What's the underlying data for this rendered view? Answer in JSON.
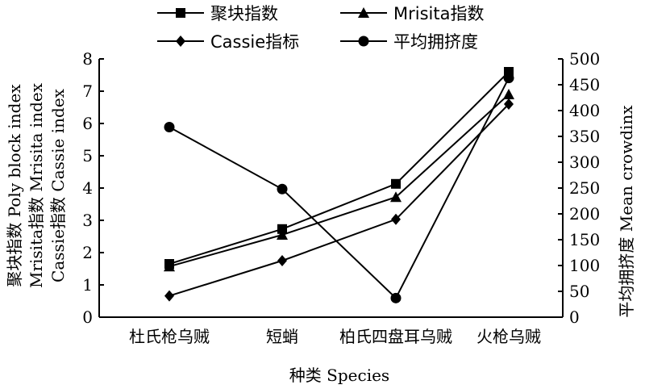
{
  "chart_data": {
    "type": "line",
    "categories": [
      "杜氏枪乌贼",
      "短蛸",
      "柏氏四盘耳乌贼",
      "火枪乌贼"
    ],
    "xlabel": "种类 Species",
    "ylabel_left_lines": [
      "聚块指数 Poly block index",
      "Mrisita指数 Mrisita index",
      "Cassie指数 Cassie index"
    ],
    "ylabel_right": "平均拥挤度 Mean crowdinx",
    "ylim_left": [
      0,
      8
    ],
    "yticks_left": [
      "0",
      "1",
      "2",
      "3",
      "4",
      "5",
      "6",
      "7",
      "8"
    ],
    "ylim_right": [
      0,
      500
    ],
    "yticks_right": [
      "0",
      "50",
      "100",
      "150",
      "200",
      "250",
      "300",
      "350",
      "400",
      "450",
      "500"
    ],
    "legend_position": "top",
    "series": [
      {
        "name": "聚块指数",
        "axis": "left",
        "marker": "square",
        "values": [
          1.65,
          2.73,
          4.13,
          7.6
        ]
      },
      {
        "name": "Mrisita指数",
        "axis": "left",
        "marker": "triangle",
        "values": [
          1.57,
          2.55,
          3.72,
          6.9
        ]
      },
      {
        "name": "Cassie指标",
        "axis": "left",
        "marker": "diamond",
        "values": [
          0.66,
          1.75,
          3.03,
          6.6
        ]
      },
      {
        "name": "平均拥挤度",
        "axis": "right",
        "marker": "circle",
        "values": [
          368,
          248,
          37,
          463
        ]
      }
    ],
    "colors": {
      "line": "#000000",
      "background": "#ffffff"
    }
  }
}
